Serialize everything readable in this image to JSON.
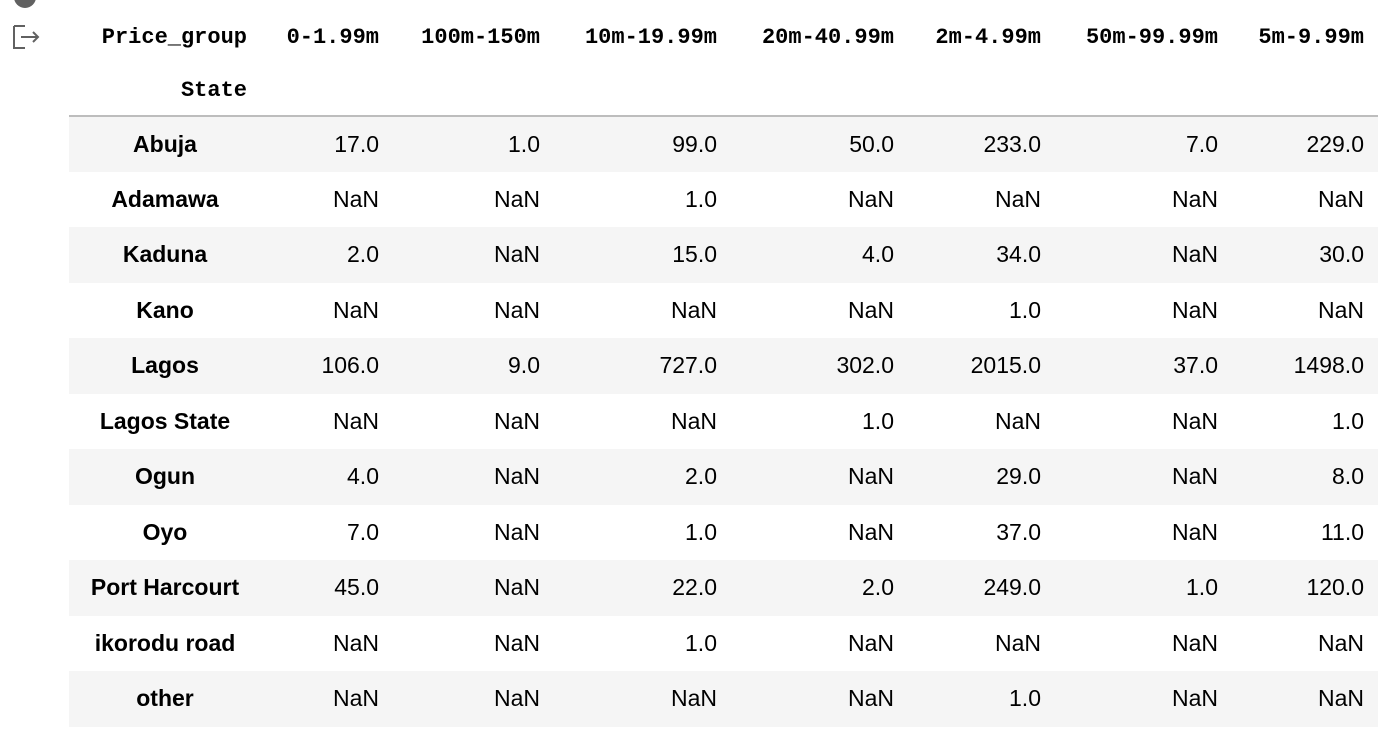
{
  "table": {
    "columns_name": "Price_group",
    "index_name": "State",
    "columns": [
      "0-1.99m",
      "100m-150m",
      "10m-19.99m",
      "20m-40.99m",
      "2m-4.99m",
      "50m-99.99m",
      "5m-9.99m"
    ],
    "rows": [
      {
        "state": "Abuja",
        "values": [
          "17.0",
          "1.0",
          "99.0",
          "50.0",
          "233.0",
          "7.0",
          "229.0"
        ]
      },
      {
        "state": "Adamawa",
        "values": [
          "NaN",
          "NaN",
          "1.0",
          "NaN",
          "NaN",
          "NaN",
          "NaN"
        ]
      },
      {
        "state": "Kaduna",
        "values": [
          "2.0",
          "NaN",
          "15.0",
          "4.0",
          "34.0",
          "NaN",
          "30.0"
        ]
      },
      {
        "state": "Kano",
        "values": [
          "NaN",
          "NaN",
          "NaN",
          "NaN",
          "1.0",
          "NaN",
          "NaN"
        ]
      },
      {
        "state": "Lagos",
        "values": [
          "106.0",
          "9.0",
          "727.0",
          "302.0",
          "2015.0",
          "37.0",
          "1498.0"
        ]
      },
      {
        "state": "Lagos State",
        "values": [
          "NaN",
          "NaN",
          "NaN",
          "1.0",
          "NaN",
          "NaN",
          "1.0"
        ]
      },
      {
        "state": "Ogun",
        "values": [
          "4.0",
          "NaN",
          "2.0",
          "NaN",
          "29.0",
          "NaN",
          "8.0"
        ]
      },
      {
        "state": "Oyo",
        "values": [
          "7.0",
          "NaN",
          "1.0",
          "NaN",
          "37.0",
          "NaN",
          "11.0"
        ]
      },
      {
        "state": "Port Harcourt",
        "values": [
          "45.0",
          "NaN",
          "22.0",
          "2.0",
          "249.0",
          "1.0",
          "120.0"
        ]
      },
      {
        "state": "ikorodu road",
        "values": [
          "NaN",
          "NaN",
          "1.0",
          "NaN",
          "NaN",
          "NaN",
          "NaN"
        ]
      },
      {
        "state": "other",
        "values": [
          "NaN",
          "NaN",
          "NaN",
          "NaN",
          "1.0",
          "NaN",
          "NaN"
        ]
      }
    ]
  },
  "icons": {
    "output": "output-arrow-icon",
    "run": "run-indicator-icon"
  },
  "colors": {
    "row_stripe": "#f5f5f5",
    "header_rule": "#bdbdbd",
    "icon": "#616161"
  }
}
